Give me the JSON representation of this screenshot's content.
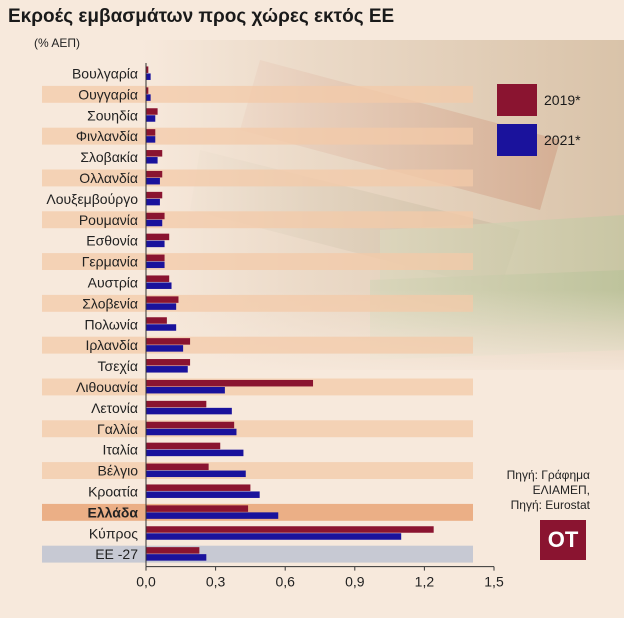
{
  "title": "Εκροές εμβασμάτων προς χώρες εκτός ΕΕ",
  "subtitle": "(% ΑΕΠ)",
  "legend": [
    {
      "label": "2019*",
      "color": "#8a1430"
    },
    {
      "label": "2021*",
      "color": "#1a129c"
    }
  ],
  "source": {
    "line1": "Πηγή: Γράφημα",
    "line2": "ΕΛΙΑΜΕΠ,",
    "line3": "Πηγή: Eurostat"
  },
  "logo": "OT",
  "highlight_category": "Ελλάδα",
  "chart_data": {
    "type": "bar",
    "orientation": "horizontal",
    "categories": [
      "Βουλγαρία",
      "Ουγγαρία",
      "Σουηδία",
      "Φινλανδία",
      "Σλοβακία",
      "Ολλανδία",
      "Λουξεμβούργο",
      "Ρουμανία",
      "Εσθονία",
      "Γερμανία",
      "Αυστρία",
      "Σλοβενία",
      "Πολωνία",
      "Ιρλανδία",
      "Τσεχία",
      "Λιθουανία",
      "Λετονία",
      "Γαλλία",
      "Ιταλία",
      "Βέλγιο",
      "Κροατία",
      "Ελλάδα",
      "Κύπρος",
      "ΕΕ -27"
    ],
    "series": [
      {
        "name": "2019*",
        "color": "#8a1430",
        "values": [
          0.01,
          0.01,
          0.05,
          0.04,
          0.07,
          0.07,
          0.07,
          0.08,
          0.1,
          0.08,
          0.1,
          0.14,
          0.09,
          0.19,
          0.19,
          0.72,
          0.26,
          0.38,
          0.32,
          0.27,
          0.45,
          0.44,
          1.24,
          0.23
        ]
      },
      {
        "name": "2021*",
        "color": "#1a129c",
        "values": [
          0.02,
          0.02,
          0.04,
          0.04,
          0.05,
          0.06,
          0.06,
          0.07,
          0.08,
          0.08,
          0.11,
          0.13,
          0.13,
          0.16,
          0.18,
          0.34,
          0.37,
          0.39,
          0.42,
          0.43,
          0.49,
          0.57,
          1.1,
          0.26
        ]
      }
    ],
    "xlim": [
      0,
      1.5
    ],
    "xticks": [
      "0,0",
      "0,3",
      "0,6",
      "0,9",
      "1,2",
      "1,5"
    ],
    "xtick_values": [
      0,
      0.3,
      0.6,
      0.9,
      1.2,
      1.5
    ],
    "legend_position": "top-right",
    "grid": false
  }
}
